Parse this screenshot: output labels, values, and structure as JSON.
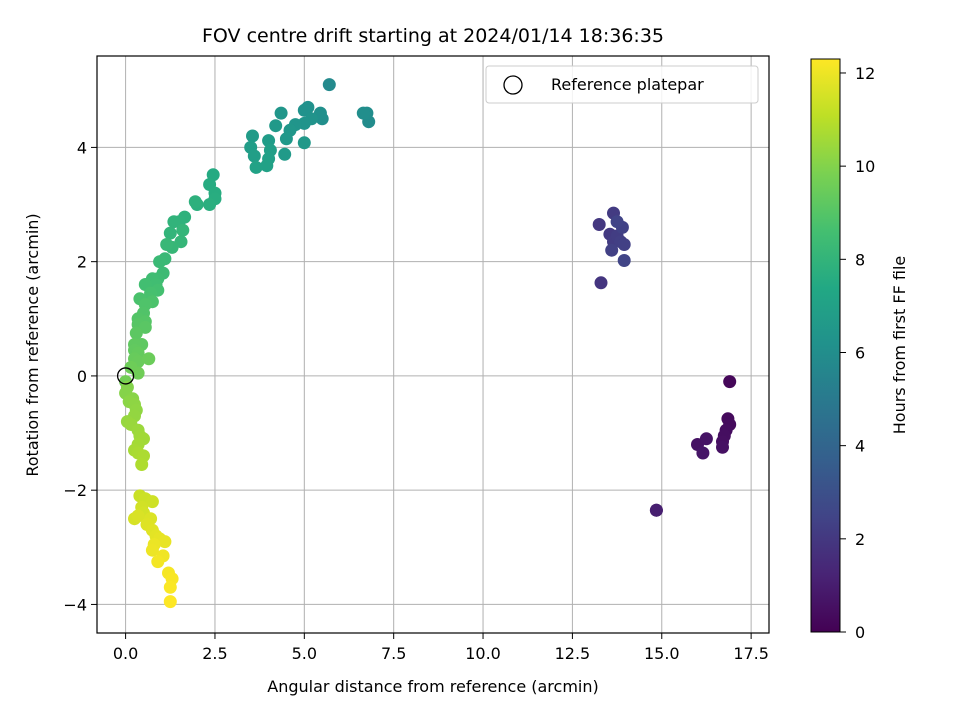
{
  "chart_data": {
    "type": "scatter",
    "title": "FOV centre drift starting at 2024/01/14 18:36:35",
    "xlabel": "Angular distance from reference (arcmin)",
    "ylabel": "Rotation from reference (arcmin)",
    "xlim": [
      -0.8,
      18.0
    ],
    "ylim": [
      -4.5,
      5.6
    ],
    "xticks": [
      0.0,
      2.5,
      5.0,
      7.5,
      10.0,
      12.5,
      15.0,
      17.5
    ],
    "xtick_labels": [
      "0.0",
      "2.5",
      "5.0",
      "7.5",
      "10.0",
      "12.5",
      "15.0",
      "17.5"
    ],
    "yticks": [
      -4,
      -2,
      0,
      2,
      4
    ],
    "ytick_labels": [
      "−4",
      "−2",
      "0",
      "2",
      "4"
    ],
    "grid": true,
    "legend": {
      "position": "top-right",
      "label": "Reference platepar"
    },
    "reference_point": {
      "x": 0.0,
      "y": 0.0
    },
    "colorbar": {
      "label": "Hours from first FF file",
      "colormap": "viridis",
      "range": [
        0,
        12.3
      ],
      "ticks": [
        0,
        2,
        4,
        6,
        8,
        10,
        12
      ],
      "tick_labels": [
        "0",
        "2",
        "4",
        "6",
        "8",
        "10",
        "12"
      ]
    },
    "points": [
      [
        16.9,
        -0.1,
        0.2
      ],
      [
        16.85,
        -0.75,
        0.3
      ],
      [
        16.9,
        -0.85,
        0.35
      ],
      [
        16.8,
        -0.95,
        0.4
      ],
      [
        16.75,
        -1.05,
        0.45
      ],
      [
        16.7,
        -1.15,
        0.5
      ],
      [
        16.7,
        -1.25,
        0.55
      ],
      [
        16.0,
        -1.2,
        0.6
      ],
      [
        16.25,
        -1.1,
        0.65
      ],
      [
        16.15,
        -1.35,
        0.7
      ],
      [
        14.85,
        -2.35,
        1.0
      ],
      [
        14.85,
        -2.35,
        1.05
      ],
      [
        13.3,
        1.63,
        1.9
      ],
      [
        13.25,
        2.65,
        2.0
      ],
      [
        13.55,
        2.48,
        2.05
      ],
      [
        13.65,
        2.85,
        2.1
      ],
      [
        13.65,
        2.35,
        2.15
      ],
      [
        13.75,
        2.45,
        2.2
      ],
      [
        13.85,
        2.35,
        2.25
      ],
      [
        13.95,
        2.3,
        2.3
      ],
      [
        13.6,
        2.2,
        2.35
      ],
      [
        13.9,
        2.6,
        2.4
      ],
      [
        13.75,
        2.7,
        2.45
      ],
      [
        13.95,
        2.02,
        2.5
      ],
      [
        5.7,
        5.1,
        5.8
      ],
      [
        6.8,
        4.45,
        5.9
      ],
      [
        6.75,
        4.6,
        5.95
      ],
      [
        6.65,
        4.6,
        6.0
      ],
      [
        5.5,
        4.5,
        6.05
      ],
      [
        5.45,
        4.6,
        6.1
      ],
      [
        5.1,
        4.7,
        6.15
      ],
      [
        5.0,
        4.65,
        6.2
      ],
      [
        5.2,
        4.5,
        6.25
      ],
      [
        5.0,
        4.42,
        6.3
      ],
      [
        4.75,
        4.4,
        6.35
      ],
      [
        4.35,
        4.6,
        6.4
      ],
      [
        4.6,
        4.3,
        6.45
      ],
      [
        4.5,
        4.15,
        6.5
      ],
      [
        5.0,
        4.08,
        6.55
      ],
      [
        4.2,
        4.38,
        6.6
      ],
      [
        4.45,
        3.88,
        6.65
      ],
      [
        3.55,
        4.2,
        6.7
      ],
      [
        4.0,
        4.12,
        6.75
      ],
      [
        3.5,
        4.0,
        6.8
      ],
      [
        3.6,
        3.85,
        6.85
      ],
      [
        4.05,
        3.95,
        6.9
      ],
      [
        4.0,
        3.8,
        6.95
      ],
      [
        3.95,
        3.68,
        7.0
      ],
      [
        3.65,
        3.65,
        7.05
      ],
      [
        2.45,
        3.52,
        7.5
      ],
      [
        2.35,
        3.35,
        7.55
      ],
      [
        2.5,
        3.2,
        7.6
      ],
      [
        2.5,
        3.1,
        7.65
      ],
      [
        2.35,
        3.0,
        7.7
      ],
      [
        2.0,
        3.0,
        7.75
      ],
      [
        1.95,
        3.05,
        7.8
      ],
      [
        1.65,
        2.78,
        7.85
      ],
      [
        1.5,
        2.7,
        7.9
      ],
      [
        1.35,
        2.7,
        7.95
      ],
      [
        1.25,
        2.5,
        8.0
      ],
      [
        1.6,
        2.55,
        8.05
      ],
      [
        1.55,
        2.35,
        8.1
      ],
      [
        1.3,
        2.25,
        8.15
      ],
      [
        1.15,
        2.3,
        8.2
      ],
      [
        1.1,
        2.05,
        8.25
      ],
      [
        0.95,
        2.0,
        8.3
      ],
      [
        1.05,
        1.8,
        8.35
      ],
      [
        0.9,
        1.7,
        8.4
      ],
      [
        0.75,
        1.7,
        8.45
      ],
      [
        0.85,
        1.6,
        8.5
      ],
      [
        0.55,
        1.6,
        8.55
      ],
      [
        0.9,
        1.5,
        8.6
      ],
      [
        0.7,
        1.45,
        8.65
      ],
      [
        0.65,
        1.35,
        8.7
      ],
      [
        0.4,
        1.35,
        8.75
      ],
      [
        0.75,
        1.3,
        8.8
      ],
      [
        0.55,
        1.25,
        8.85
      ],
      [
        0.5,
        1.1,
        8.9
      ],
      [
        0.35,
        1.0,
        8.95
      ],
      [
        0.55,
        0.95,
        9.0
      ],
      [
        0.35,
        0.9,
        9.05
      ],
      [
        0.55,
        0.85,
        9.1
      ],
      [
        0.3,
        0.75,
        9.15
      ],
      [
        0.45,
        0.55,
        9.2
      ],
      [
        0.25,
        0.55,
        9.25
      ],
      [
        0.25,
        0.45,
        9.3
      ],
      [
        0.35,
        0.4,
        9.35
      ],
      [
        0.25,
        0.3,
        9.4
      ],
      [
        0.35,
        0.25,
        9.45
      ],
      [
        0.65,
        0.3,
        9.5
      ],
      [
        0.15,
        0.15,
        9.55
      ],
      [
        0.35,
        0.05,
        9.6
      ],
      [
        0.0,
        -0.1,
        9.65
      ],
      [
        0.05,
        -0.2,
        10.0
      ],
      [
        0.0,
        -0.3,
        10.05
      ],
      [
        0.2,
        -0.4,
        10.1
      ],
      [
        0.1,
        -0.45,
        10.15
      ],
      [
        0.25,
        -0.5,
        10.2
      ],
      [
        0.3,
        -0.6,
        10.25
      ],
      [
        0.25,
        -0.7,
        10.3
      ],
      [
        0.05,
        -0.8,
        10.35
      ],
      [
        0.15,
        -0.85,
        10.4
      ],
      [
        0.35,
        -0.95,
        10.45
      ],
      [
        0.4,
        -1.05,
        10.5
      ],
      [
        0.5,
        -1.1,
        10.55
      ],
      [
        0.35,
        -1.2,
        10.6
      ],
      [
        0.25,
        -1.3,
        10.65
      ],
      [
        0.35,
        -1.35,
        10.7
      ],
      [
        0.5,
        -1.4,
        10.75
      ],
      [
        0.45,
        -1.55,
        10.8
      ],
      [
        0.4,
        -2.1,
        11.3
      ],
      [
        0.55,
        -2.15,
        11.35
      ],
      [
        0.75,
        -2.2,
        11.4
      ],
      [
        0.45,
        -2.3,
        11.45
      ],
      [
        0.5,
        -2.4,
        11.5
      ],
      [
        0.25,
        -2.5,
        11.55
      ],
      [
        0.35,
        -2.45,
        11.6
      ],
      [
        0.7,
        -2.5,
        11.65
      ],
      [
        0.6,
        -2.6,
        11.7
      ],
      [
        0.75,
        -2.7,
        11.75
      ],
      [
        0.85,
        -2.8,
        11.8
      ],
      [
        0.95,
        -2.85,
        11.85
      ],
      [
        1.1,
        -2.9,
        11.9
      ],
      [
        0.8,
        -2.95,
        11.95
      ],
      [
        0.75,
        -3.05,
        12.0
      ],
      [
        1.05,
        -3.15,
        12.05
      ],
      [
        0.9,
        -3.25,
        12.1
      ],
      [
        1.2,
        -3.45,
        12.15
      ],
      [
        1.3,
        -3.55,
        12.2
      ],
      [
        1.25,
        -3.7,
        12.25
      ],
      [
        1.25,
        -3.95,
        12.3
      ]
    ]
  }
}
